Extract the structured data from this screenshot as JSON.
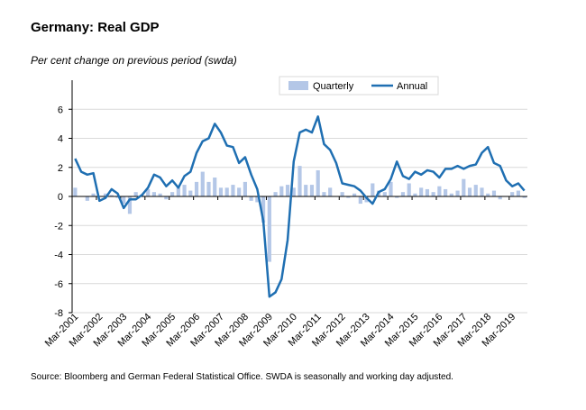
{
  "title": "Germany: Real GDP",
  "subtitle": "Per cent change on previous period (swda)",
  "source": "Source: Bloomberg and German Federal Statistical Office.  SWDA is seasonally and working day adjusted.",
  "colors": {
    "quarterly": "#b4c7e7",
    "annual": "#1f6fb2",
    "axis": "#000000",
    "grid": "#d9d9d9"
  },
  "chart_data": {
    "type": "bar",
    "title": "Germany: Real GDP",
    "ylabel": "Per cent change on previous period (swda)",
    "ylim": [
      -8,
      8
    ],
    "yticks": [
      -8,
      -6,
      -4,
      -2,
      0,
      2,
      4,
      6
    ],
    "xtick_labels": [
      "Mar-2001",
      "Mar-2002",
      "Mar-2003",
      "Mar-2004",
      "Mar-2005",
      "Mar-2006",
      "Mar-2007",
      "Mar-2008",
      "Mar-2009",
      "Mar-2010",
      "Mar-2011",
      "Mar-2012",
      "Mar-2013",
      "Mar-2014",
      "Mar-2015",
      "Mar-2016",
      "Mar-2017",
      "Mar-2018",
      "Mar-2019"
    ],
    "legend": [
      "Quarterly",
      "Annual"
    ],
    "legend_position": "top-right",
    "series": [
      {
        "name": "Quarterly",
        "type": "bar",
        "values": [
          0.6,
          0.0,
          -0.3,
          0.2,
          0.0,
          0.2,
          0.1,
          -0.1,
          -0.5,
          -1.2,
          0.3,
          0.1,
          0.5,
          0.3,
          0.2,
          -0.2,
          0.3,
          0.6,
          0.8,
          0.4,
          1.0,
          1.7,
          1.0,
          1.3,
          0.6,
          0.6,
          0.8,
          0.6,
          1.0,
          -0.3,
          -0.4,
          -1.8,
          -4.5,
          0.3,
          0.7,
          0.8,
          0.6,
          2.1,
          0.8,
          0.8,
          1.8,
          0.3,
          0.6,
          0.0,
          0.3,
          -0.1,
          0.2,
          -0.5,
          -0.4,
          0.9,
          0.4,
          0.3,
          1.0,
          -0.1,
          0.3,
          0.9,
          0.2,
          0.6,
          0.5,
          0.3,
          0.7,
          0.5,
          0.2,
          0.4,
          1.2,
          0.6,
          0.8,
          0.6,
          0.2,
          0.4,
          -0.2,
          0.0,
          0.3,
          0.4,
          -0.1
        ]
      },
      {
        "name": "Annual",
        "type": "line",
        "values": [
          2.6,
          1.7,
          1.5,
          1.6,
          -0.3,
          -0.1,
          0.5,
          0.2,
          -0.8,
          -0.2,
          -0.2,
          0.1,
          0.6,
          1.5,
          1.3,
          0.7,
          1.1,
          0.6,
          1.4,
          1.7,
          3.0,
          3.8,
          4.0,
          5.0,
          4.4,
          3.5,
          3.4,
          2.3,
          2.7,
          1.5,
          0.5,
          -1.7,
          -6.9,
          -6.6,
          -5.7,
          -3.0,
          2.4,
          4.4,
          4.6,
          4.4,
          5.5,
          3.6,
          3.2,
          2.3,
          0.9,
          0.8,
          0.7,
          0.4,
          -0.1,
          -0.5,
          0.3,
          0.5,
          1.2,
          2.4,
          1.4,
          1.2,
          1.7,
          1.5,
          1.8,
          1.7,
          1.3,
          1.9,
          1.9,
          2.1,
          1.9,
          2.1,
          2.2,
          3.0,
          3.4,
          2.3,
          2.1,
          1.1,
          0.7,
          0.9,
          0.4
        ]
      }
    ]
  }
}
